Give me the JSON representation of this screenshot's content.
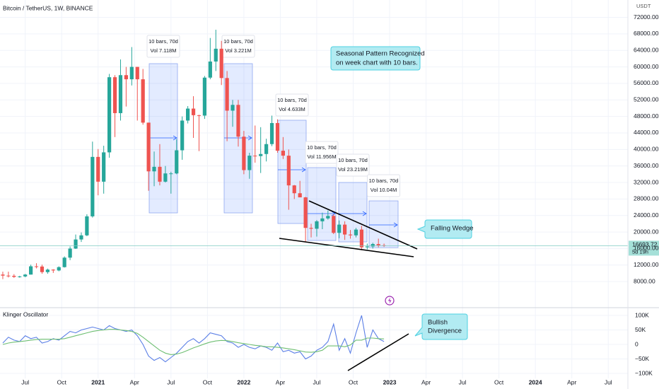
{
  "chart_data": [
    {
      "type": "candlestick",
      "title": "Bitcoin / TetherUS, 1W, BINANCE",
      "y_unit": "USDT",
      "up_color": "#26a69a",
      "down_color": "#ef5350",
      "xlim": [
        0,
        224
      ],
      "ylim": [
        2200,
        76200
      ],
      "xticks": [
        {
          "value": 9,
          "label": "Jul"
        },
        {
          "value": 22,
          "label": "Oct"
        },
        {
          "value": 35,
          "label": "2021"
        },
        {
          "value": 48,
          "label": "Apr"
        },
        {
          "value": 61,
          "label": "Jul"
        },
        {
          "value": 74,
          "label": "Oct"
        },
        {
          "value": 87,
          "label": "2022"
        },
        {
          "value": 100,
          "label": "Apr"
        },
        {
          "value": 113,
          "label": "Jul"
        },
        {
          "value": 126,
          "label": "Oct"
        },
        {
          "value": 139,
          "label": "2023"
        },
        {
          "value": 152,
          "label": "Apr"
        },
        {
          "value": 165,
          "label": "Jul"
        },
        {
          "value": 178,
          "label": "Oct"
        },
        {
          "value": 191,
          "label": "2024"
        },
        {
          "value": 204,
          "label": "Apr"
        },
        {
          "value": 217,
          "label": "Jul"
        }
      ],
      "yticks": [
        {
          "value": 8000,
          "label": "8000.00"
        },
        {
          "value": 12000,
          "label": "12000.00"
        },
        {
          "value": 16000,
          "label": "16000.00"
        },
        {
          "value": 20000,
          "label": "20000.00"
        },
        {
          "value": 24000,
          "label": "24000.00"
        },
        {
          "value": 28000,
          "label": "28000.00"
        },
        {
          "value": 32000,
          "label": "32000.00"
        },
        {
          "value": 36000,
          "label": "36000.00"
        },
        {
          "value": 40000,
          "label": "40000.00"
        },
        {
          "value": 44000,
          "label": "44000.00"
        },
        {
          "value": 48000,
          "label": "48000.00"
        },
        {
          "value": 52000,
          "label": "52000.00"
        },
        {
          "value": 56000,
          "label": "56000.00"
        },
        {
          "value": 60000,
          "label": "60000.00"
        },
        {
          "value": 64000,
          "label": "64000.00"
        },
        {
          "value": 68000,
          "label": "68000.00"
        },
        {
          "value": 72000,
          "label": "72000.00"
        }
      ],
      "grid": true,
      "last_price": 16693.72,
      "countdown": "5d 19h",
      "x": [
        1,
        3,
        5,
        7,
        9,
        11,
        13,
        15,
        17,
        19,
        21,
        23,
        25,
        27,
        29,
        31,
        33,
        35,
        37,
        39,
        41,
        43,
        45,
        47,
        49,
        51,
        53,
        55,
        57,
        59,
        61,
        63,
        65,
        67,
        69,
        71,
        73,
        75,
        77,
        79,
        81,
        83,
        85,
        87,
        89,
        91,
        93,
        95,
        97,
        99,
        101,
        103,
        105,
        107,
        109,
        111,
        113,
        115,
        117,
        119,
        121,
        123,
        125,
        127,
        129,
        131,
        133,
        135,
        137
      ],
      "open": [
        9700,
        9450,
        9400,
        9150,
        9250,
        9700,
        11700,
        11650,
        10300,
        10900,
        10700,
        11500,
        13800,
        16000,
        18200,
        19200,
        23800,
        38200,
        32200,
        39300,
        57500,
        48800,
        58000,
        57000,
        60000,
        57000,
        46500,
        34700,
        35800,
        32200,
        34200,
        34200,
        39800,
        47000,
        49900,
        48300,
        48200,
        57400,
        61300,
        64400,
        57300,
        49400,
        50800,
        43100,
        35000,
        38500,
        38400,
        38900,
        41300,
        46400,
        39700,
        38500,
        31300,
        29400,
        28400,
        21000,
        20800,
        22600,
        23300,
        23900,
        19800,
        21800,
        19400,
        19200,
        20600,
        16300,
        16500,
        17100,
        16800
      ],
      "high": [
        10400,
        10400,
        9800,
        9400,
        9850,
        12100,
        12450,
        12100,
        11150,
        11000,
        11700,
        14100,
        16500,
        19400,
        19900,
        24300,
        41900,
        40100,
        40900,
        58300,
        58000,
        61800,
        60000,
        64800,
        60000,
        59500,
        46500,
        39500,
        41300,
        36000,
        34600,
        42500,
        48000,
        50500,
        52900,
        48400,
        57800,
        67000,
        69000,
        66300,
        59000,
        52000,
        52000,
        44500,
        39200,
        45800,
        45400,
        42600,
        48200,
        47300,
        43000,
        40000,
        31400,
        32400,
        28500,
        22000,
        22900,
        24700,
        25200,
        24300,
        22800,
        22600,
        20500,
        21000,
        21500,
        17200,
        17400,
        18400,
        17200
      ],
      "low": [
        8600,
        9000,
        8900,
        8950,
        9050,
        9700,
        11200,
        9900,
        9900,
        10100,
        10500,
        11400,
        13200,
        15900,
        17600,
        19000,
        23500,
        28900,
        29300,
        38000,
        43000,
        47000,
        50400,
        55500,
        47000,
        46000,
        30000,
        31100,
        31300,
        32000,
        29300,
        34000,
        37500,
        46300,
        42800,
        39600,
        47400,
        57000,
        59000,
        55600,
        42000,
        45500,
        40700,
        34000,
        32900,
        36800,
        34300,
        37100,
        40800,
        39200,
        37700,
        25400,
        28000,
        28800,
        17600,
        18700,
        18900,
        20700,
        23000,
        19500,
        18500,
        18100,
        18400,
        18700,
        15600,
        15800,
        16000,
        16300,
        16400
      ],
      "close": [
        9450,
        9400,
        9150,
        9250,
        9700,
        11700,
        11650,
        10300,
        10900,
        10700,
        11500,
        13800,
        16000,
        18200,
        19200,
        23800,
        38200,
        32200,
        39300,
        57500,
        48800,
        58000,
        57000,
        60000,
        57000,
        46500,
        34700,
        35800,
        32200,
        34200,
        34200,
        39800,
        47000,
        49900,
        48300,
        48200,
        57400,
        61300,
        64400,
        57300,
        49400,
        50800,
        43100,
        35000,
        38500,
        38400,
        38900,
        41300,
        46400,
        39700,
        38500,
        31300,
        29400,
        28400,
        21000,
        20800,
        22600,
        23300,
        23900,
        19800,
        21800,
        19400,
        19200,
        20600,
        16300,
        16500,
        17100,
        16800,
        16693.72
      ],
      "seasonal_boxes": [
        {
          "bars": "10 bars, 70d",
          "volume": "Vol 7.118M"
        },
        {
          "bars": "10 bars, 70d",
          "volume": "Vol 3.221M"
        },
        {
          "bars": "10 bars, 70d",
          "volume": "Vol 4.633M"
        },
        {
          "bars": "10 bars, 70d",
          "volume": "Vol 11.956M"
        },
        {
          "bars": "10 bars, 70d",
          "volume": "Vol 23.219M"
        },
        {
          "bars": "10 bars, 70d",
          "volume": "Vol 10.04M"
        }
      ],
      "notes": {
        "seasonal": [
          "Seasonal Pattern Recognized",
          "on week chart with 10 bars."
        ],
        "wedge": "Falling Wedge"
      }
    },
    {
      "type": "line",
      "title": "Klinger Oscillator",
      "ylim": [
        -117000,
        122000
      ],
      "yticks": [
        {
          "value": 100000,
          "label": "100K"
        },
        {
          "value": 50000,
          "label": "50K"
        },
        0,
        {
          "value": -50000,
          "label": "−50K"
        },
        {
          "value": -100000,
          "label": "−100K"
        }
      ],
      "series": [
        {
          "color": "#5b7fe6",
          "values": [
            5000,
            25000,
            15000,
            10000,
            30000,
            20000,
            25000,
            5000,
            10000,
            20000,
            15000,
            30000,
            45000,
            40000,
            50000,
            55000,
            60000,
            55000,
            50000,
            65000,
            55000,
            50000,
            45000,
            50000,
            30000,
            0,
            -40000,
            -55000,
            -45000,
            -60000,
            -45000,
            -30000,
            -10000,
            10000,
            20000,
            5000,
            20000,
            40000,
            35000,
            30000,
            10000,
            5000,
            -10000,
            0,
            -10000,
            -15000,
            -5000,
            -10000,
            -20000,
            5000,
            -25000,
            -20000,
            -30000,
            -25000,
            -50000,
            -40000,
            -20000,
            -10000,
            10000,
            70000,
            -20000,
            20000,
            -30000,
            40000,
            100000,
            -10000,
            50000,
            20000,
            10000
          ]
        },
        {
          "color": "#6fbf73",
          "values": [
            0,
            5000,
            8000,
            10000,
            12000,
            15000,
            17000,
            18000,
            18000,
            18000,
            18000,
            20000,
            25000,
            30000,
            35000,
            40000,
            45000,
            48000,
            50000,
            52000,
            52000,
            50000,
            48000,
            45000,
            38000,
            25000,
            10000,
            -5000,
            -20000,
            -30000,
            -35000,
            -33000,
            -28000,
            -20000,
            -12000,
            -5000,
            2000,
            8000,
            12000,
            14000,
            13000,
            10000,
            6000,
            3000,
            0,
            -3000,
            -5000,
            -8000,
            -8000,
            -10000,
            -12000,
            -15000,
            -18000,
            -22000,
            -26000,
            -27000,
            -25000,
            -20000,
            -5000,
            -5000,
            -5000,
            -8000,
            -2000,
            15000,
            15000,
            22000,
            22000,
            20000,
            19000
          ]
        }
      ],
      "notes": {
        "divergence": [
          "Bullish",
          "Divergence"
        ]
      }
    }
  ]
}
